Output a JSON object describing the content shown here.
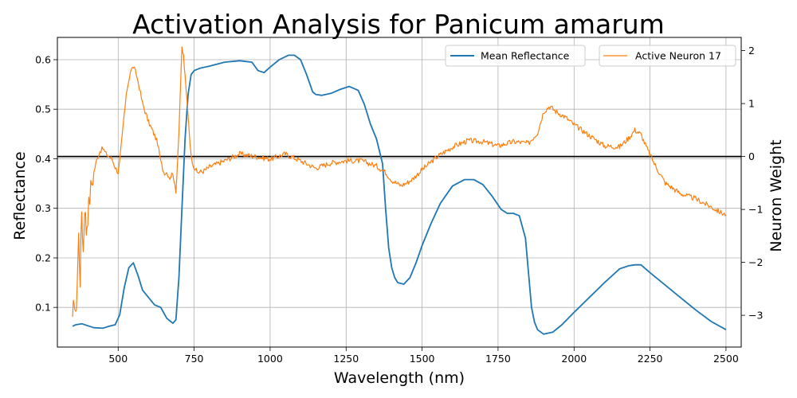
{
  "chart_data": {
    "type": "line",
    "title": "Activation Analysis for Panicum amarum",
    "xlabel": "Wavelength (nm)",
    "ylabel": "Reflectance",
    "y2label": "Neuron Weight",
    "xlim": [
      300,
      2550
    ],
    "ylim": [
      0.02,
      0.645
    ],
    "y2lim": [
      -3.6,
      2.25
    ],
    "x_ticks": [
      500,
      750,
      1000,
      1250,
      1500,
      1750,
      2000,
      2250,
      2500
    ],
    "y_ticks": [
      0.1,
      0.2,
      0.3,
      0.4,
      0.5,
      0.6
    ],
    "y2_ticks": [
      -3,
      -2,
      -1,
      0,
      1,
      2
    ],
    "grid": true,
    "legend": [
      "upper-center",
      "upper-right"
    ],
    "zero_line_color": "#000000",
    "series": [
      {
        "name": "Mean Reflectance",
        "axis": "left",
        "color": "#1f77b4",
        "x": [
          350,
          360,
          380,
          400,
          420,
          450,
          470,
          490,
          505,
          520,
          535,
          550,
          565,
          580,
          600,
          620,
          640,
          660,
          680,
          690,
          700,
          710,
          720,
          730,
          740,
          750,
          770,
          800,
          850,
          900,
          940,
          960,
          980,
          1000,
          1030,
          1060,
          1080,
          1100,
          1120,
          1140,
          1150,
          1170,
          1200,
          1230,
          1260,
          1290,
          1310,
          1330,
          1350,
          1370,
          1380,
          1390,
          1400,
          1410,
          1420,
          1440,
          1460,
          1480,
          1500,
          1530,
          1560,
          1600,
          1640,
          1670,
          1700,
          1730,
          1760,
          1780,
          1800,
          1820,
          1840,
          1850,
          1860,
          1870,
          1880,
          1900,
          1930,
          1960,
          2000,
          2050,
          2100,
          2150,
          2180,
          2200,
          2220,
          2250,
          2300,
          2350,
          2400,
          2450,
          2500
        ],
        "values": [
          0.062,
          0.065,
          0.067,
          0.063,
          0.059,
          0.058,
          0.062,
          0.065,
          0.085,
          0.14,
          0.18,
          0.19,
          0.165,
          0.135,
          0.12,
          0.105,
          0.1,
          0.078,
          0.068,
          0.075,
          0.16,
          0.3,
          0.44,
          0.53,
          0.57,
          0.578,
          0.583,
          0.587,
          0.595,
          0.598,
          0.595,
          0.578,
          0.574,
          0.585,
          0.6,
          0.609,
          0.609,
          0.6,
          0.57,
          0.535,
          0.53,
          0.528,
          0.532,
          0.54,
          0.546,
          0.538,
          0.51,
          0.47,
          0.44,
          0.39,
          0.3,
          0.22,
          0.18,
          0.16,
          0.15,
          0.147,
          0.16,
          0.19,
          0.225,
          0.27,
          0.31,
          0.345,
          0.358,
          0.358,
          0.348,
          0.325,
          0.298,
          0.29,
          0.29,
          0.285,
          0.24,
          0.17,
          0.1,
          0.07,
          0.055,
          0.046,
          0.05,
          0.065,
          0.09,
          0.12,
          0.15,
          0.178,
          0.184,
          0.186,
          0.186,
          0.17,
          0.145,
          0.12,
          0.095,
          0.072,
          0.055
        ]
      },
      {
        "name": "Active Neuron 17",
        "axis": "right",
        "color": "#ff7f0e",
        "x": [
          350,
          355,
          360,
          365,
          370,
          375,
          380,
          385,
          390,
          395,
          400,
          410,
          420,
          430,
          440,
          450,
          460,
          470,
          480,
          490,
          500,
          505,
          510,
          520,
          530,
          540,
          550,
          560,
          570,
          580,
          600,
          620,
          630,
          640,
          650,
          660,
          670,
          680,
          690,
          700,
          705,
          710,
          715,
          720,
          730,
          740,
          750,
          760,
          780,
          800,
          850,
          900,
          950,
          1000,
          1050,
          1100,
          1150,
          1200,
          1250,
          1300,
          1350,
          1380,
          1400,
          1430,
          1450,
          1470,
          1500,
          1550,
          1600,
          1650,
          1700,
          1750,
          1800,
          1850,
          1880,
          1900,
          1920,
          1940,
          1970,
          2000,
          2050,
          2100,
          2150,
          2180,
          2200,
          2220,
          2240,
          2270,
          2300,
          2350,
          2400,
          2450,
          2480,
          2500
        ],
        "values": [
          -3.2,
          -2.6,
          -3.1,
          -2.4,
          -1.5,
          -2.3,
          -1.0,
          -1.8,
          -0.9,
          -1.4,
          -1.1,
          -0.6,
          -0.3,
          -0.05,
          0.1,
          0.15,
          0.05,
          0.0,
          -0.05,
          -0.2,
          -0.3,
          -0.1,
          0.2,
          0.8,
          1.3,
          1.6,
          1.7,
          1.55,
          1.3,
          1.0,
          0.65,
          0.4,
          0.25,
          -0.1,
          -0.3,
          -0.3,
          -0.4,
          -0.3,
          -0.7,
          0.5,
          1.3,
          2.05,
          1.9,
          1.5,
          0.8,
          0.0,
          -0.2,
          -0.3,
          -0.28,
          -0.2,
          -0.08,
          0.05,
          0.0,
          -0.05,
          0.05,
          -0.08,
          -0.22,
          -0.12,
          -0.08,
          -0.08,
          -0.18,
          -0.3,
          -0.45,
          -0.55,
          -0.5,
          -0.42,
          -0.25,
          0.0,
          0.18,
          0.3,
          0.28,
          0.2,
          0.28,
          0.25,
          0.45,
          0.85,
          0.95,
          0.85,
          0.75,
          0.6,
          0.4,
          0.2,
          0.18,
          0.35,
          0.5,
          0.42,
          0.15,
          -0.2,
          -0.5,
          -0.7,
          -0.8,
          -0.95,
          -1.05,
          -1.1
        ]
      }
    ]
  }
}
